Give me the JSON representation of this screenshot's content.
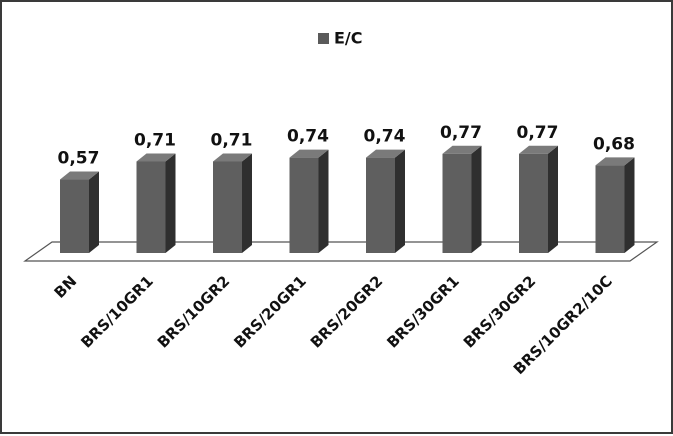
{
  "chart_data": {
    "type": "bar",
    "categories": [
      "BN",
      "BRS/10GR1",
      "BRS/10GR2",
      "BRS/20GR1",
      "BRS/20GR2",
      "BRS/30GR1",
      "BRS/30GR2",
      "BRS/10GR2/10C"
    ],
    "series": [
      {
        "name": "E/C",
        "values": [
          0.57,
          0.71,
          0.71,
          0.74,
          0.74,
          0.77,
          0.77,
          0.68
        ]
      }
    ],
    "data_labels": [
      "0,57",
      "0,71",
      "0,71",
      "0,74",
      "0,74",
      "0,77",
      "0,77",
      "0,68"
    ],
    "title": "",
    "xlabel": "",
    "ylabel": "",
    "ylim": [
      0,
      0.9
    ],
    "grid": false,
    "bar_style": "3d",
    "legend_position": "top-center",
    "colors": {
      "front": "#5f5f5f",
      "side": "#2f2f2f",
      "top": "#7a7a7a",
      "floor": "#ffffff",
      "legend": "#5a5a5a"
    }
  }
}
